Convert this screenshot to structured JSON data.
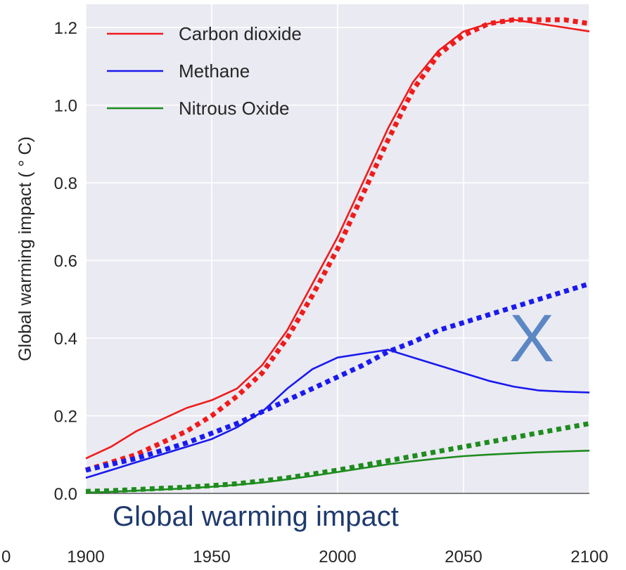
{
  "chart_data": {
    "type": "line",
    "ylabel": "Global warming impact ( ° C)",
    "xlim": [
      1900,
      2100
    ],
    "ylim": [
      0,
      1.26
    ],
    "x_ticks": [
      1900,
      1950,
      2000,
      2050,
      2100
    ],
    "x_tick_labels": [
      "1900",
      "1950",
      "2000",
      "2050",
      "2100"
    ],
    "partial_tick_label": "0",
    "y_ticks": [
      0.0,
      0.2,
      0.4,
      0.6,
      0.8,
      1.0,
      1.2
    ],
    "y_tick_labels": [
      "0.0",
      "0.2",
      "0.4",
      "0.6",
      "0.8",
      "1.0",
      "1.2"
    ],
    "grid": true,
    "legend_position": "top-left",
    "legend": [
      "Carbon dioxide",
      "Methane",
      "Nitrous Oxide"
    ],
    "annotations": {
      "caption": "Global warming impact",
      "cross_mark": "X"
    },
    "series": [
      {
        "name": "Carbon dioxide",
        "style": "solid",
        "color": "#ee1c1c",
        "x": [
          1900,
          1910,
          1920,
          1930,
          1940,
          1950,
          1960,
          1970,
          1980,
          1990,
          2000,
          2010,
          2020,
          2030,
          2040,
          2050,
          2060,
          2070,
          2080,
          2090,
          2100
        ],
        "y": [
          0.09,
          0.12,
          0.16,
          0.19,
          0.22,
          0.24,
          0.27,
          0.33,
          0.42,
          0.54,
          0.66,
          0.8,
          0.94,
          1.06,
          1.14,
          1.19,
          1.21,
          1.22,
          1.21,
          1.2,
          1.19
        ]
      },
      {
        "name": "",
        "style": "dotted",
        "color": "#ee1c1c",
        "x": [
          1900,
          1910,
          1920,
          1930,
          1940,
          1950,
          1960,
          1970,
          1980,
          1990,
          2000,
          2010,
          2020,
          2030,
          2040,
          2050,
          2060,
          2070,
          2080,
          2090,
          2100
        ],
        "y": [
          0.06,
          0.08,
          0.1,
          0.13,
          0.16,
          0.2,
          0.25,
          0.31,
          0.4,
          0.51,
          0.63,
          0.77,
          0.91,
          1.04,
          1.13,
          1.18,
          1.21,
          1.22,
          1.22,
          1.22,
          1.21
        ]
      },
      {
        "name": "Methane",
        "style": "solid",
        "color": "#1a1aee",
        "x": [
          1900,
          1910,
          1920,
          1930,
          1940,
          1950,
          1960,
          1970,
          1980,
          1990,
          2000,
          2010,
          2020,
          2030,
          2040,
          2050,
          2060,
          2070,
          2080,
          2090,
          2100
        ],
        "y": [
          0.04,
          0.06,
          0.08,
          0.1,
          0.12,
          0.14,
          0.17,
          0.21,
          0.27,
          0.32,
          0.35,
          0.36,
          0.37,
          0.35,
          0.33,
          0.31,
          0.29,
          0.275,
          0.265,
          0.262,
          0.26
        ]
      },
      {
        "name": "",
        "style": "dotted",
        "color": "#1a1aee",
        "x": [
          1900,
          1910,
          1920,
          1930,
          1940,
          1950,
          1960,
          1970,
          1980,
          1990,
          2000,
          2010,
          2020,
          2030,
          2040,
          2050,
          2060,
          2070,
          2080,
          2090,
          2100
        ],
        "y": [
          0.06,
          0.075,
          0.09,
          0.11,
          0.13,
          0.155,
          0.18,
          0.21,
          0.24,
          0.27,
          0.3,
          0.33,
          0.365,
          0.39,
          0.42,
          0.44,
          0.46,
          0.48,
          0.5,
          0.52,
          0.54
        ]
      },
      {
        "name": "Nitrous Oxide",
        "style": "solid",
        "color": "#1e8c1e",
        "x": [
          1900,
          1910,
          1920,
          1930,
          1940,
          1950,
          1960,
          1970,
          1980,
          1990,
          2000,
          2010,
          2020,
          2030,
          2040,
          2050,
          2060,
          2070,
          2080,
          2090,
          2100
        ],
        "y": [
          0.002,
          0.004,
          0.007,
          0.01,
          0.013,
          0.017,
          0.022,
          0.028,
          0.036,
          0.045,
          0.055,
          0.065,
          0.075,
          0.083,
          0.09,
          0.096,
          0.1,
          0.103,
          0.106,
          0.108,
          0.11
        ]
      },
      {
        "name": "",
        "style": "dotted",
        "color": "#1e8c1e",
        "x": [
          1900,
          1910,
          1920,
          1930,
          1940,
          1950,
          1960,
          1970,
          1980,
          1990,
          2000,
          2010,
          2020,
          2030,
          2040,
          2050,
          2060,
          2070,
          2080,
          2090,
          2100
        ],
        "y": [
          0.005,
          0.007,
          0.01,
          0.013,
          0.016,
          0.02,
          0.025,
          0.032,
          0.04,
          0.05,
          0.06,
          0.072,
          0.084,
          0.096,
          0.108,
          0.12,
          0.132,
          0.144,
          0.156,
          0.168,
          0.18
        ]
      }
    ]
  }
}
